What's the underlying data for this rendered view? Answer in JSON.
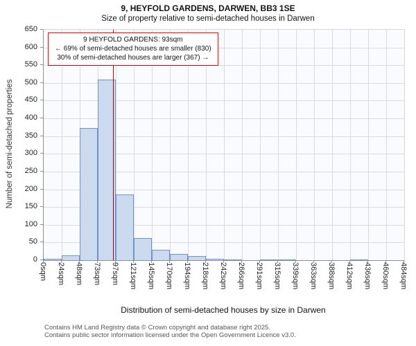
{
  "page": {
    "title": "9, HEYFOLD GARDENS, DARWEN, BB3 1SE",
    "subtitle": "Size of property relative to semi-detached houses in Darwen"
  },
  "annotation": {
    "line1": "9 HEYFOLD GARDENS: 93sqm",
    "line2": "← 69% of semi-detached houses are smaller (830)",
    "line3": "30% of semi-detached houses are larger (367) →"
  },
  "chart_data": {
    "type": "bar",
    "title": "9, HEYFOLD GARDENS, DARWEN, BB3 1SE",
    "subtitle": "Size of property relative to semi-detached houses in Darwen",
    "xlabel": "Distribution of semi-detached houses by size in Darwen",
    "ylabel": "Number of semi-detached properties",
    "ylim": [
      0,
      650
    ],
    "ytick_step": 50,
    "yticks": [
      0,
      50,
      100,
      150,
      200,
      250,
      300,
      350,
      400,
      450,
      500,
      550,
      600,
      650
    ],
    "x_tick_labels": [
      "0sqm",
      "24sqm",
      "48sqm",
      "73sqm",
      "97sqm",
      "121sqm",
      "145sqm",
      "170sqm",
      "194sqm",
      "218sqm",
      "242sqm",
      "266sqm",
      "291sqm",
      "315sqm",
      "339sqm",
      "363sqm",
      "388sqm",
      "412sqm",
      "436sqm",
      "460sqm",
      "484sqm"
    ],
    "bin_values": [
      4,
      13,
      373,
      510,
      185,
      63,
      30,
      17,
      11,
      4,
      2,
      0,
      2,
      2,
      0,
      0,
      0,
      2,
      0,
      0
    ],
    "marker": {
      "label": "9 HEYFOLD GARDENS",
      "value_sqm": 93,
      "axis_min_sqm": 0,
      "axis_max_sqm": 484
    },
    "smaller": {
      "percent": 69,
      "count": 830
    },
    "larger": {
      "percent": 30,
      "count": 367
    },
    "grid": true,
    "legend_position": "none",
    "colors": {
      "bar_fill": "#ccdaef",
      "bar_border": "#6f94c4",
      "marker_line": "#aa0000",
      "annotation_border": "#cc0000",
      "grid": "#d6dbe7"
    }
  },
  "footer": {
    "line1": "Contains HM Land Registry data © Crown copyright and database right 2025.",
    "line2": "Contains public sector information licensed under the Open Government Licence v3.0."
  }
}
